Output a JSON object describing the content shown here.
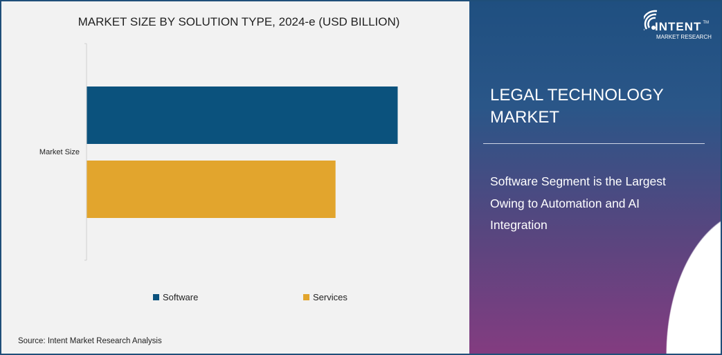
{
  "chart_data": {
    "type": "bar",
    "orientation": "horizontal",
    "title": "MARKET SIZE BY SOLUTION TYPE, 2024-e (USD BILLION)",
    "categories": [
      "Market Size"
    ],
    "series": [
      {
        "name": "Software",
        "values": [
          100
        ],
        "color": "#0b527d"
      },
      {
        "name": "Services",
        "values": [
          80
        ],
        "color": "#e2a52d"
      }
    ],
    "value_axis_shown": false,
    "grid": false,
    "legend_placement": "bottom"
  },
  "source": "Source:  Intent Market Research Analysis",
  "panel": {
    "title": "LEGAL TECHNOLOGY MARKET",
    "subtitle": "Software Segment is the Largest Owing to Automation and AI Integration"
  },
  "logo": {
    "name": "INTENT",
    "tagline": "MARKET RESEARCH",
    "tm": "TM"
  }
}
